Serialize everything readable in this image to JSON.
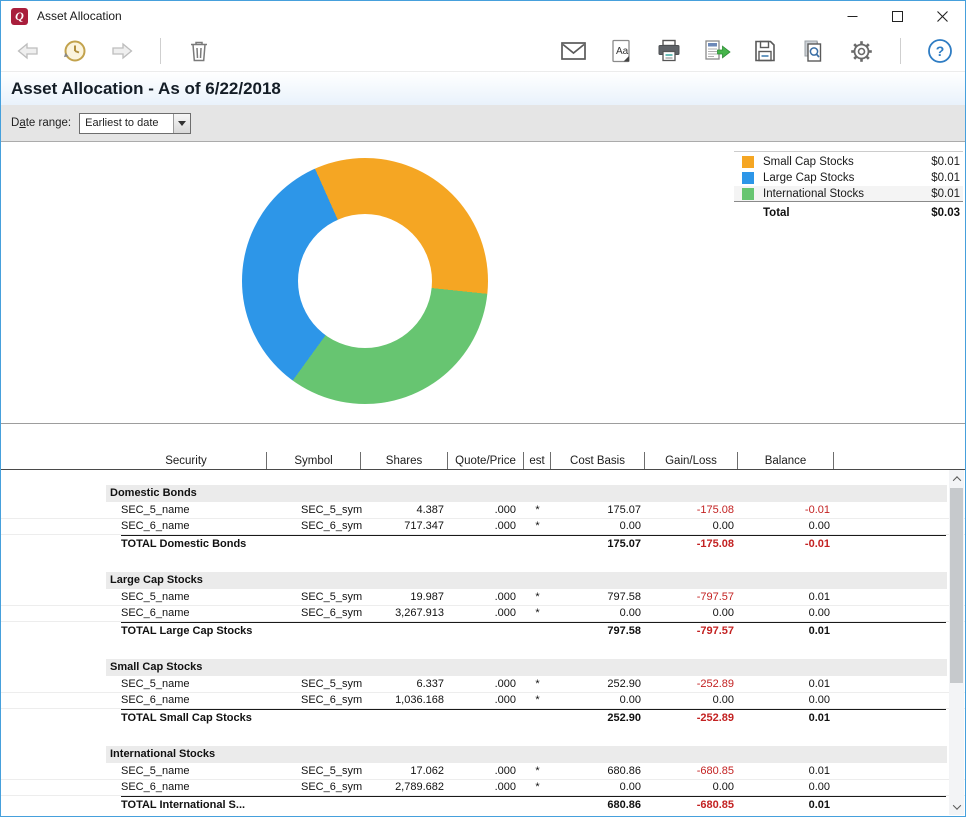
{
  "window": {
    "title": "Asset Allocation",
    "logo_letter": "Q"
  },
  "toolbar": {
    "left_icons": [
      "back",
      "history",
      "forward",
      "delete"
    ],
    "right_icons": [
      "email",
      "fonts",
      "print",
      "export",
      "save",
      "print-preview",
      "settings",
      "help"
    ],
    "fonts_icon_label": "Aa",
    "help_icon_label": "?"
  },
  "report": {
    "title": "Asset Allocation - As of 6/22/2018",
    "date_range_label_pre": "D",
    "date_range_label_accel": "a",
    "date_range_label_post": "te range:",
    "date_range_value": "Earliest to date"
  },
  "chart_data": {
    "type": "pie",
    "subtype": "donut",
    "title": "Asset Allocation - As of 6/22/2018",
    "labels": [
      "Small Cap Stocks",
      "Large Cap Stocks",
      "International Stocks"
    ],
    "values": [
      0.01,
      0.01,
      0.01
    ],
    "display_values": [
      "$0.01",
      "$0.01",
      "$0.01"
    ],
    "colors": [
      "#F5A623",
      "#2D96E8",
      "#67C571"
    ],
    "total_label": "Total",
    "total_display": "$0.03",
    "legend_position": "top-right",
    "render": {
      "start_deg": -24,
      "order": [
        0,
        2,
        1
      ]
    }
  },
  "legend": {
    "items": [
      {
        "label": "Small Cap Stocks",
        "value": "$0.01",
        "color": "#F5A623"
      },
      {
        "label": "Large Cap Stocks",
        "value": "$0.01",
        "color": "#2D96E8"
      },
      {
        "label": "International Stocks",
        "value": "$0.01",
        "color": "#67C571"
      }
    ],
    "total_label": "Total",
    "total_value": "$0.03"
  },
  "table": {
    "columns": [
      "Security",
      "Symbol",
      "Shares",
      "Quote/Price",
      "est",
      "Cost Basis",
      "Gain/Loss",
      "Balance"
    ],
    "sections": [
      {
        "name": "Domestic Bonds",
        "rows": [
          {
            "security": "SEC_5_name",
            "symbol": "SEC_5_sym",
            "shares": "4.387",
            "quote": ".000",
            "est": "*",
            "cost_basis": "175.07",
            "gain_loss": "-175.08",
            "balance": "-0.01"
          },
          {
            "security": "SEC_6_name",
            "symbol": "SEC_6_sym",
            "shares": "717.347",
            "quote": ".000",
            "est": "*",
            "cost_basis": "0.00",
            "gain_loss": "0.00",
            "balance": "0.00"
          }
        ],
        "total": {
          "label": "TOTAL Domestic Bonds",
          "cost_basis": "175.07",
          "gain_loss": "-175.08",
          "balance": "-0.01"
        }
      },
      {
        "name": "Large Cap Stocks",
        "rows": [
          {
            "security": "SEC_5_name",
            "symbol": "SEC_5_sym",
            "shares": "19.987",
            "quote": ".000",
            "est": "*",
            "cost_basis": "797.58",
            "gain_loss": "-797.57",
            "balance": "0.01"
          },
          {
            "security": "SEC_6_name",
            "symbol": "SEC_6_sym",
            "shares": "3,267.913",
            "quote": ".000",
            "est": "*",
            "cost_basis": "0.00",
            "gain_loss": "0.00",
            "balance": "0.00"
          }
        ],
        "total": {
          "label": "TOTAL Large Cap Stocks",
          "cost_basis": "797.58",
          "gain_loss": "-797.57",
          "balance": "0.01"
        }
      },
      {
        "name": "Small Cap Stocks",
        "rows": [
          {
            "security": "SEC_5_name",
            "symbol": "SEC_5_sym",
            "shares": "6.337",
            "quote": ".000",
            "est": "*",
            "cost_basis": "252.90",
            "gain_loss": "-252.89",
            "balance": "0.01"
          },
          {
            "security": "SEC_6_name",
            "symbol": "SEC_6_sym",
            "shares": "1,036.168",
            "quote": ".000",
            "est": "*",
            "cost_basis": "0.00",
            "gain_loss": "0.00",
            "balance": "0.00"
          }
        ],
        "total": {
          "label": "TOTAL Small Cap Stocks",
          "cost_basis": "252.90",
          "gain_loss": "-252.89",
          "balance": "0.01"
        }
      },
      {
        "name": "International Stocks",
        "rows": [
          {
            "security": "SEC_5_name",
            "symbol": "SEC_5_sym",
            "shares": "17.062",
            "quote": ".000",
            "est": "*",
            "cost_basis": "680.86",
            "gain_loss": "-680.85",
            "balance": "0.01"
          },
          {
            "security": "SEC_6_name",
            "symbol": "SEC_6_sym",
            "shares": "2,789.682",
            "quote": ".000",
            "est": "*",
            "cost_basis": "0.00",
            "gain_loss": "0.00",
            "balance": "0.00"
          }
        ],
        "total": {
          "label": "TOTAL International S...",
          "cost_basis": "680.86",
          "gain_loss": "-680.85",
          "balance": "0.01"
        }
      }
    ]
  }
}
